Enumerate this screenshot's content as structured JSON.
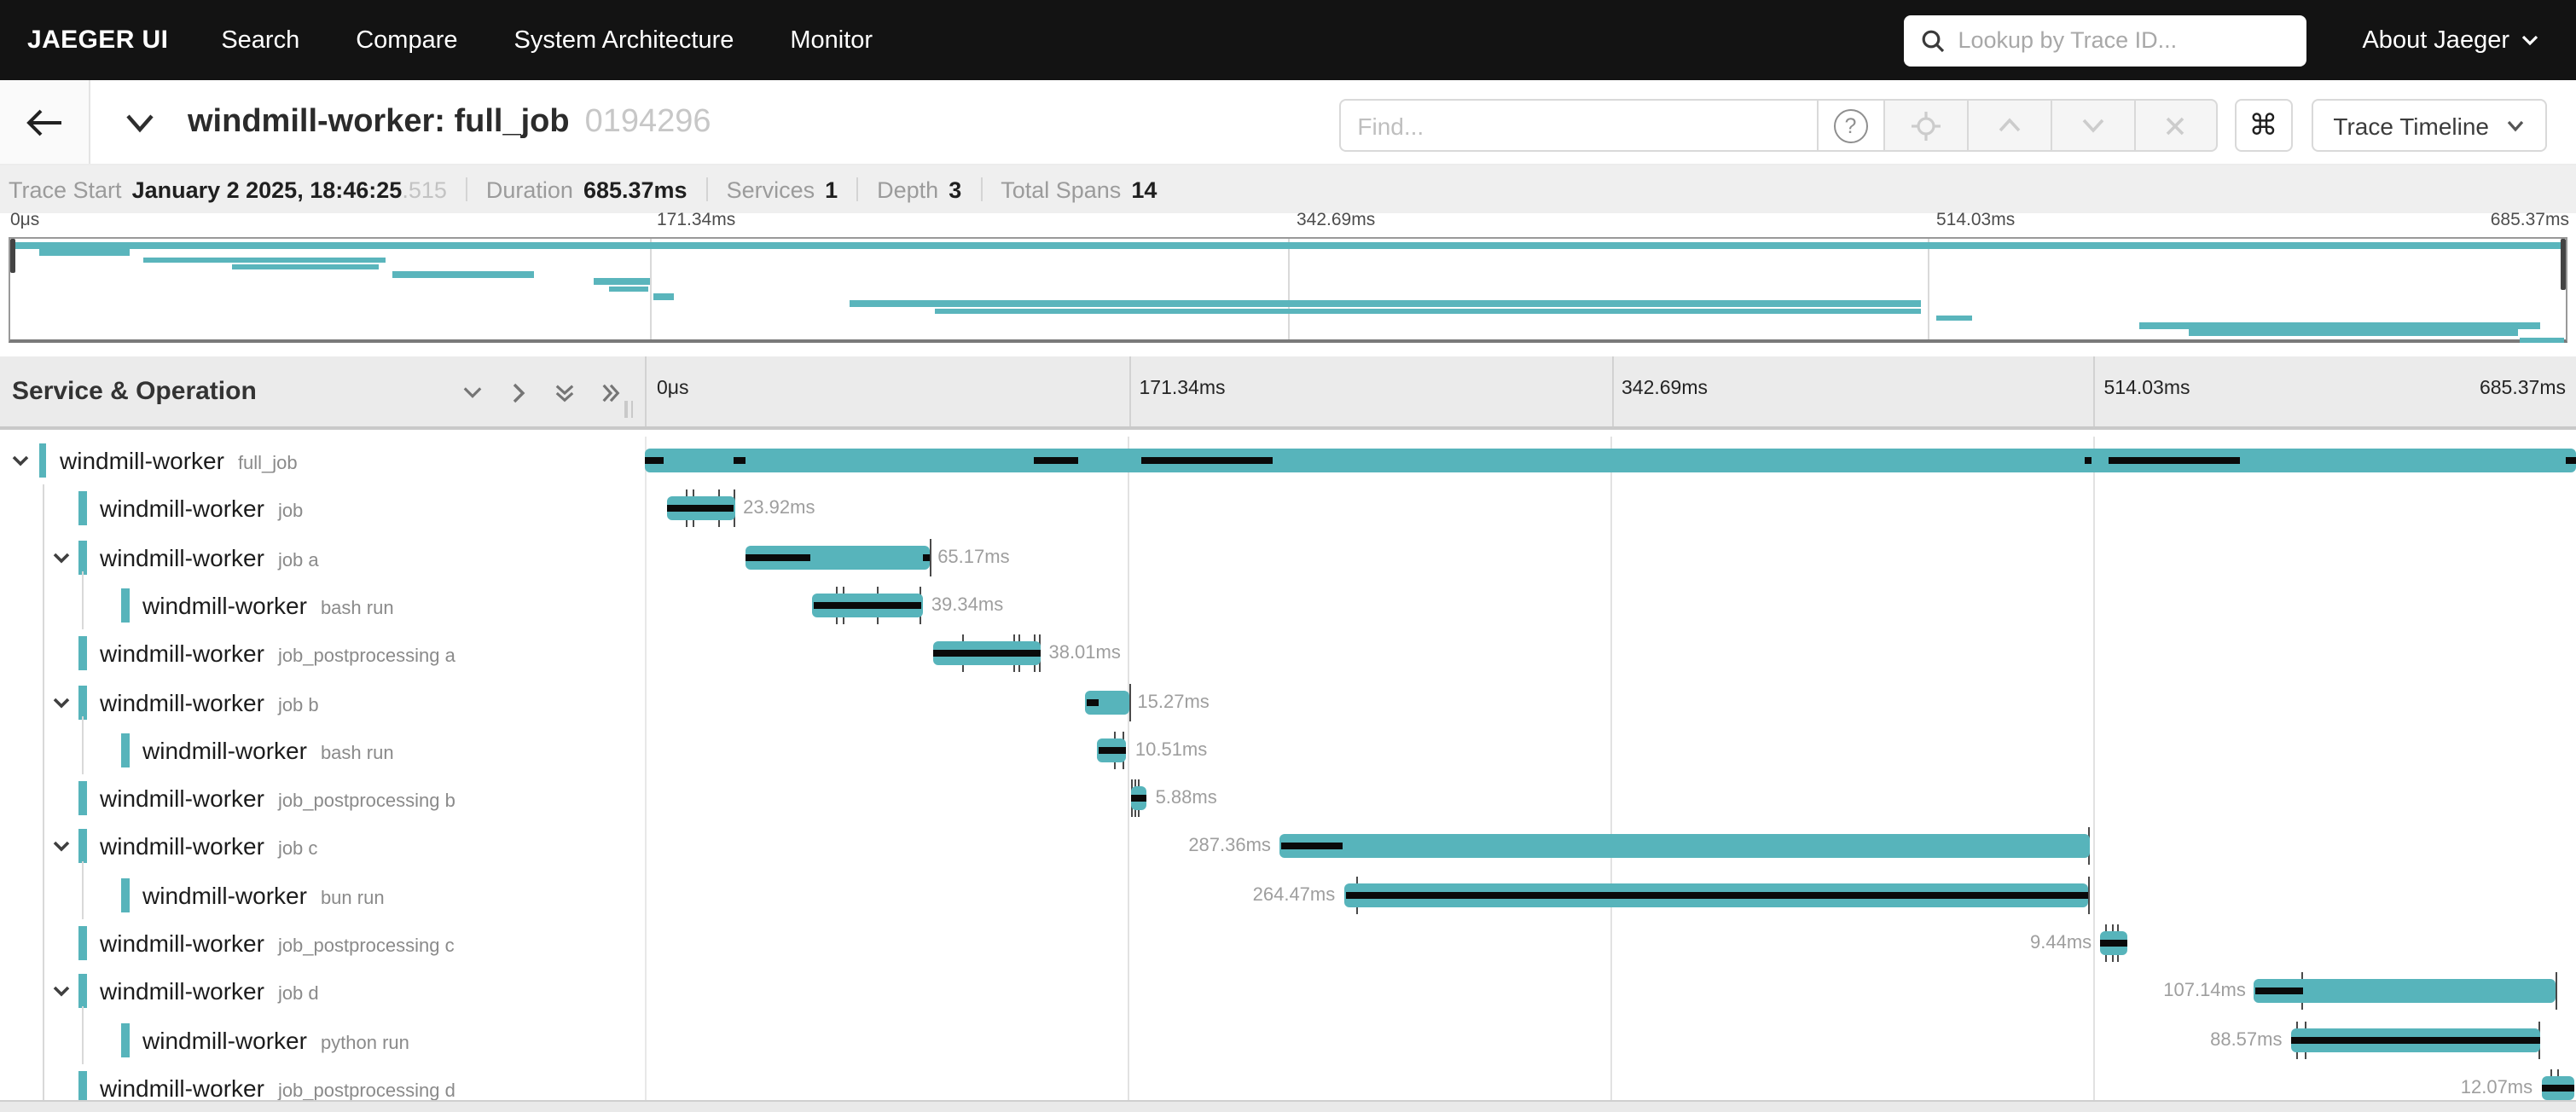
{
  "nav": {
    "brand": "JAEGER UI",
    "items": [
      "Search",
      "Compare",
      "System Architecture",
      "Monitor"
    ],
    "search_placeholder": "Lookup by Trace ID...",
    "about_label": "About Jaeger"
  },
  "trace_header": {
    "title": "windmill-worker: full_job",
    "trace_id": "0194296",
    "find_placeholder": "Find...",
    "help_label": "?",
    "cmd_label": "⌘",
    "view_selector": "Trace Timeline"
  },
  "metadata": {
    "items": [
      {
        "label": "Trace Start",
        "value": "January 2 2025, 18:46:25",
        "suffix": ".515"
      },
      {
        "label": "Duration",
        "value": "685.37ms"
      },
      {
        "label": "Services",
        "value": "1"
      },
      {
        "label": "Depth",
        "value": "3"
      },
      {
        "label": "Total Spans",
        "value": "14"
      }
    ]
  },
  "timeline": {
    "duration_ms": 685.37,
    "col_header": "Service & Operation",
    "ticks": [
      {
        "label": "0μs",
        "pct": 0
      },
      {
        "label": "171.34ms",
        "pct": 25
      },
      {
        "label": "342.69ms",
        "pct": 50
      },
      {
        "label": "514.03ms",
        "pct": 75
      },
      {
        "label": "685.37ms",
        "pct": 100
      }
    ],
    "accent_color": "#57b4bb",
    "critical_path_color": "#0a0a0a"
  },
  "spans": [
    {
      "service": "windmill-worker",
      "operation": "full_job",
      "level": 0,
      "expandable": true,
      "start_ms": 0,
      "duration_ms": 685.37,
      "duration_label": "",
      "label_side": "none",
      "black": [
        [
          0,
          0.01
        ],
        [
          0.046,
          0.052
        ],
        [
          0.201,
          0.224
        ],
        [
          0.257,
          0.325
        ],
        [
          0.746,
          0.749
        ],
        [
          0.758,
          0.826
        ],
        [
          0.995,
          1
        ]
      ],
      "ticks": []
    },
    {
      "service": "windmill-worker",
      "operation": "job",
      "level": 1,
      "expandable": false,
      "start_ms": 7.9,
      "duration_ms": 23.92,
      "duration_label": "23.92ms",
      "label_side": "right",
      "black": [
        [
          0.01,
          0.99
        ]
      ],
      "ticks": [
        0.3,
        0.4,
        0.76,
        1.0
      ]
    },
    {
      "service": "windmill-worker",
      "operation": "job a",
      "level": 1,
      "expandable": true,
      "start_ms": 35.7,
      "duration_ms": 65.17,
      "duration_label": "65.17ms",
      "label_side": "right",
      "black": [
        [
          0.005,
          0.358
        ],
        [
          0.963,
          1
        ]
      ],
      "ticks": [
        1.01
      ]
    },
    {
      "service": "windmill-worker",
      "operation": "bash run",
      "level": 2,
      "expandable": false,
      "start_ms": 59.3,
      "duration_ms": 39.34,
      "duration_label": "39.34ms",
      "label_side": "right",
      "black": [
        [
          0.02,
          0.99
        ]
      ],
      "ticks": [
        0.23,
        0.28,
        0.6,
        0.985
      ]
    },
    {
      "service": "windmill-worker",
      "operation": "job_postprocessing a",
      "level": 1,
      "expandable": false,
      "start_ms": 102.3,
      "duration_ms": 38.01,
      "duration_label": "38.01ms",
      "label_side": "right",
      "black": [
        [
          0,
          1
        ]
      ],
      "ticks": [
        0.28,
        0.76,
        0.81,
        0.95,
        1.0
      ]
    },
    {
      "service": "windmill-worker",
      "operation": "job b",
      "level": 1,
      "expandable": true,
      "start_ms": 156.5,
      "duration_ms": 15.27,
      "duration_label": "15.27ms",
      "label_side": "right",
      "black": [
        [
          0.02,
          0.31
        ]
      ],
      "ticks": [
        1.02
      ]
    },
    {
      "service": "windmill-worker",
      "operation": "bash run",
      "level": 2,
      "expandable": false,
      "start_ms": 160.5,
      "duration_ms": 10.51,
      "duration_label": "10.51ms",
      "label_side": "right",
      "black": [
        [
          0.05,
          1
        ]
      ],
      "ticks": [
        0.58,
        0.86
      ]
    },
    {
      "service": "windmill-worker",
      "operation": "job_postprocessing b",
      "level": 1,
      "expandable": false,
      "start_ms": 172.3,
      "duration_ms": 5.88,
      "duration_label": "5.88ms",
      "label_side": "right",
      "black": [
        [
          0,
          1
        ]
      ],
      "ticks": [
        0.12,
        0.3,
        0.5
      ]
    },
    {
      "service": "windmill-worker",
      "operation": "job c",
      "level": 1,
      "expandable": true,
      "start_ms": 225.2,
      "duration_ms": 287.36,
      "duration_label": "287.36ms",
      "label_side": "left",
      "black": [
        [
          0.002,
          0.078
        ]
      ],
      "ticks": [
        1.0
      ]
    },
    {
      "service": "windmill-worker",
      "operation": "bun run",
      "level": 2,
      "expandable": false,
      "start_ms": 248.0,
      "duration_ms": 264.47,
      "duration_label": "264.47ms",
      "label_side": "left",
      "black": [
        [
          0.004,
          1
        ]
      ],
      "ticks": [
        0.017,
        1.0
      ]
    },
    {
      "service": "windmill-worker",
      "operation": "job_postprocessing c",
      "level": 1,
      "expandable": false,
      "start_ms": 516.5,
      "duration_ms": 9.44,
      "duration_label": "9.44ms",
      "label_side": "left",
      "black": [
        [
          0,
          1
        ]
      ],
      "ticks": [
        0.2,
        0.45,
        0.65
      ]
    },
    {
      "service": "windmill-worker",
      "operation": "job d",
      "level": 1,
      "expandable": true,
      "start_ms": 571.2,
      "duration_ms": 107.14,
      "duration_label": "107.14ms",
      "label_side": "left",
      "black": [
        [
          0.005,
          0.164
        ]
      ],
      "ticks": [
        0.16,
        1.0
      ]
    },
    {
      "service": "windmill-worker",
      "operation": "python run",
      "level": 2,
      "expandable": false,
      "start_ms": 584.1,
      "duration_ms": 88.57,
      "duration_label": "88.57ms",
      "label_side": "left",
      "black": [
        [
          0.005,
          1
        ]
      ],
      "ticks": [
        0.025,
        0.06,
        0.995
      ]
    },
    {
      "service": "windmill-worker",
      "operation": "job_postprocessing d",
      "level": 1,
      "expandable": false,
      "start_ms": 673.0,
      "duration_ms": 12.07,
      "duration_label": "12.07ms",
      "label_side": "left",
      "black": [
        [
          0,
          1
        ]
      ],
      "ticks": [
        0.32,
        0.5
      ]
    }
  ]
}
